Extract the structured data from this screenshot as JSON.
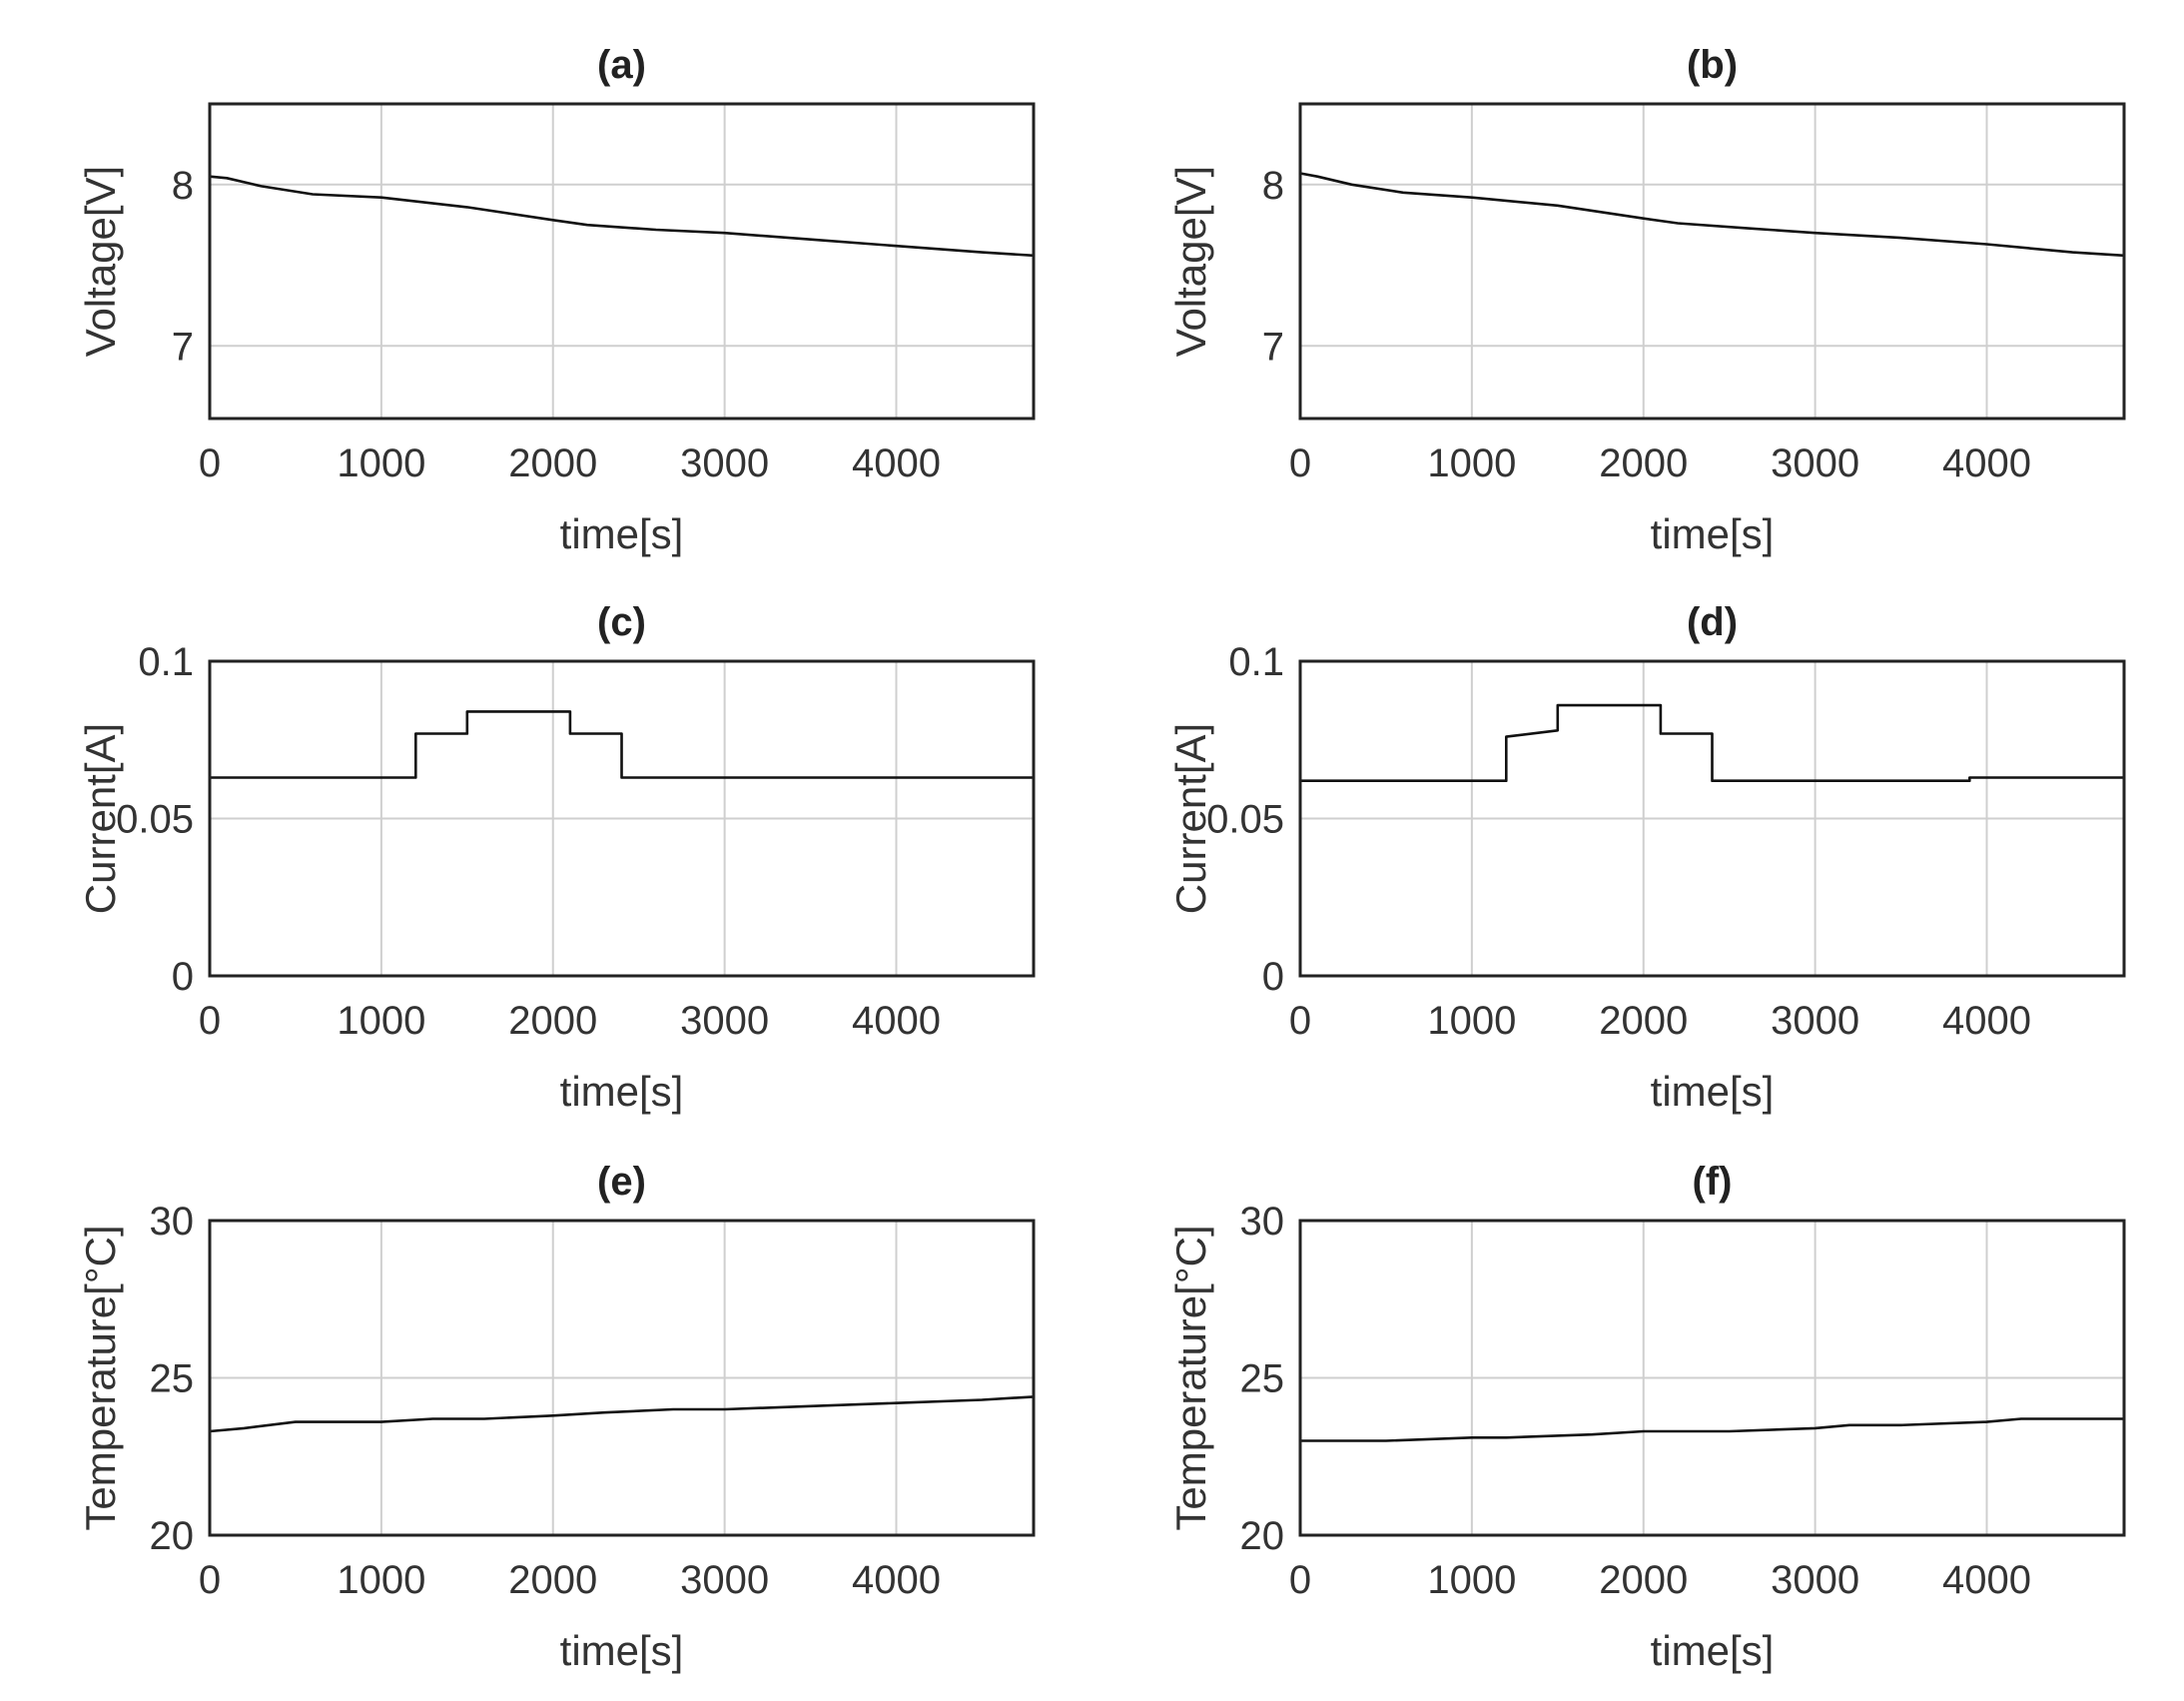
{
  "chart_data": [
    {
      "type": "line",
      "title": "(a)",
      "xlabel": "time[s]",
      "ylabel": "Voltage[V]",
      "xlim": [
        0,
        4800
      ],
      "ylim": [
        6.55,
        8.5
      ],
      "xticks": [
        0,
        1000,
        2000,
        3000,
        4000
      ],
      "yticks": [
        7,
        8
      ],
      "xtick_labels": [
        "0",
        "1000",
        "2000",
        "3000",
        "4000"
      ],
      "ytick_labels": [
        "7",
        "8"
      ],
      "grid": true,
      "series": [
        {
          "name": "Voltage",
          "x": [
            0,
            100,
            300,
            600,
            1000,
            1500,
            2000,
            2200,
            2600,
            3000,
            3500,
            4000,
            4500,
            4800
          ],
          "y": [
            8.05,
            8.04,
            7.99,
            7.94,
            7.92,
            7.86,
            7.78,
            7.75,
            7.72,
            7.7,
            7.66,
            7.62,
            7.58,
            7.56
          ]
        }
      ]
    },
    {
      "type": "line",
      "title": "(b)",
      "xlabel": "time[s]",
      "ylabel": "Voltage[V]",
      "xlim": [
        0,
        4800
      ],
      "ylim": [
        6.55,
        8.5
      ],
      "xticks": [
        0,
        1000,
        2000,
        3000,
        4000
      ],
      "yticks": [
        7,
        8
      ],
      "xtick_labels": [
        "0",
        "1000",
        "2000",
        "3000",
        "4000"
      ],
      "ytick_labels": [
        "7",
        "8"
      ],
      "grid": true,
      "series": [
        {
          "name": "Voltage",
          "x": [
            0,
            100,
            300,
            600,
            1000,
            1500,
            2000,
            2200,
            2600,
            3000,
            3500,
            4000,
            4500,
            4800
          ],
          "y": [
            8.07,
            8.05,
            8.0,
            7.95,
            7.92,
            7.87,
            7.79,
            7.76,
            7.73,
            7.7,
            7.67,
            7.63,
            7.58,
            7.56
          ]
        }
      ]
    },
    {
      "type": "line",
      "title": "(c)",
      "xlabel": "time[s]",
      "ylabel": "Current[A]",
      "xlim": [
        0,
        4800
      ],
      "ylim": [
        0,
        0.1
      ],
      "xticks": [
        0,
        1000,
        2000,
        3000,
        4000
      ],
      "yticks": [
        0,
        0.05,
        0.1
      ],
      "xtick_labels": [
        "0",
        "1000",
        "2000",
        "3000",
        "4000"
      ],
      "ytick_labels": [
        "0",
        "0.05",
        "0.1"
      ],
      "grid": true,
      "series": [
        {
          "name": "Current",
          "x": [
            0,
            1200,
            1200,
            1500,
            1500,
            2100,
            2100,
            2400,
            2400,
            4800
          ],
          "y": [
            0.063,
            0.063,
            0.077,
            0.077,
            0.084,
            0.084,
            0.077,
            0.077,
            0.063,
            0.063
          ]
        }
      ]
    },
    {
      "type": "line",
      "title": "(d)",
      "xlabel": "time[s]",
      "ylabel": "Current[A]",
      "xlim": [
        0,
        4800
      ],
      "ylim": [
        0,
        0.1
      ],
      "xticks": [
        0,
        1000,
        2000,
        3000,
        4000
      ],
      "yticks": [
        0,
        0.05,
        0.1
      ],
      "xtick_labels": [
        "0",
        "1000",
        "2000",
        "3000",
        "4000"
      ],
      "ytick_labels": [
        "0",
        "0.05",
        "0.1"
      ],
      "grid": true,
      "series": [
        {
          "name": "Current",
          "x": [
            0,
            1200,
            1200,
            1500,
            1500,
            2100,
            2100,
            2400,
            2400,
            3900,
            3900,
            4800
          ],
          "y": [
            0.062,
            0.062,
            0.076,
            0.078,
            0.086,
            0.086,
            0.077,
            0.077,
            0.062,
            0.062,
            0.063,
            0.063
          ]
        }
      ]
    },
    {
      "type": "line",
      "title": "(e)",
      "xlabel": "time[s]",
      "ylabel": "Temperature[°C]",
      "xlim": [
        0,
        4800
      ],
      "ylim": [
        20,
        30
      ],
      "xticks": [
        0,
        1000,
        2000,
        3000,
        4000
      ],
      "yticks": [
        20,
        25,
        30
      ],
      "xtick_labels": [
        "0",
        "1000",
        "2000",
        "3000",
        "4000"
      ],
      "ytick_labels": [
        "20",
        "25",
        "30"
      ],
      "grid": true,
      "series": [
        {
          "name": "Temperature",
          "x": [
            0,
            200,
            500,
            1000,
            1300,
            1600,
            2000,
            2300,
            2700,
            3000,
            3500,
            4000,
            4500,
            4800
          ],
          "y": [
            23.3,
            23.4,
            23.6,
            23.6,
            23.7,
            23.7,
            23.8,
            23.9,
            24.0,
            24.0,
            24.1,
            24.2,
            24.3,
            24.4
          ]
        }
      ]
    },
    {
      "type": "line",
      "title": "(f)",
      "xlabel": "time[s]",
      "ylabel": "Temperature[°C]",
      "xlim": [
        0,
        4800
      ],
      "ylim": [
        20,
        30
      ],
      "xticks": [
        0,
        1000,
        2000,
        3000,
        4000
      ],
      "yticks": [
        20,
        25,
        30
      ],
      "xtick_labels": [
        "0",
        "1000",
        "2000",
        "3000",
        "4000"
      ],
      "ytick_labels": [
        "20",
        "25",
        "30"
      ],
      "grid": true,
      "series": [
        {
          "name": "Temperature",
          "x": [
            0,
            500,
            1000,
            1200,
            1700,
            2000,
            2500,
            3000,
            3200,
            3500,
            4000,
            4200,
            4800
          ],
          "y": [
            23.0,
            23.0,
            23.1,
            23.1,
            23.2,
            23.3,
            23.3,
            23.4,
            23.5,
            23.5,
            23.6,
            23.7,
            23.7
          ]
        }
      ]
    }
  ]
}
